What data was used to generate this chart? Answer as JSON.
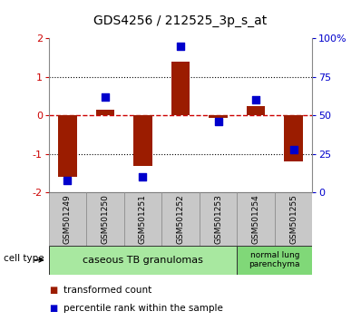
{
  "title": "GDS4256 / 212525_3p_s_at",
  "samples": [
    "GSM501249",
    "GSM501250",
    "GSM501251",
    "GSM501252",
    "GSM501253",
    "GSM501254",
    "GSM501255"
  ],
  "transformed_counts": [
    -1.6,
    0.15,
    -1.3,
    1.4,
    -0.05,
    0.25,
    -1.2
  ],
  "percentile_ranks": [
    8,
    62,
    10,
    95,
    46,
    60,
    28
  ],
  "ylim_left": [
    -2,
    2
  ],
  "ylim_right": [
    0,
    100
  ],
  "bar_color": "#9B1C00",
  "dot_color": "#0000CC",
  "hline_color": "#CC0000",
  "grid_color": "#000000",
  "bg_color": "#FFFFFF",
  "label_box_color": "#C8C8C8",
  "label_box_edge": "#888888",
  "ct_colors": [
    "#A8E8A0",
    "#80D878"
  ],
  "ct_labels": [
    "caseous TB granulomas",
    "normal lung\nparenchyma"
  ],
  "ct_ranges": [
    [
      0,
      4
    ],
    [
      5,
      6
    ]
  ],
  "legend_red": "transformed count",
  "legend_blue": "percentile rank within the sample",
  "cell_type_label": "cell type",
  "bar_width": 0.5,
  "tick_fontsize": 8,
  "sample_fontsize": 6.5,
  "title_fontsize": 10,
  "legend_fontsize": 7.5,
  "ct_fontsize": 8,
  "right_ytick_labels": [
    "0",
    "25",
    "50",
    "75",
    "100%"
  ],
  "right_ytick_values": [
    0,
    25,
    50,
    75,
    100
  ],
  "left_ytick_labels": [
    "-2",
    "-1",
    "0",
    "1",
    "2"
  ],
  "left_ytick_values": [
    -2,
    -1,
    0,
    1,
    2
  ]
}
